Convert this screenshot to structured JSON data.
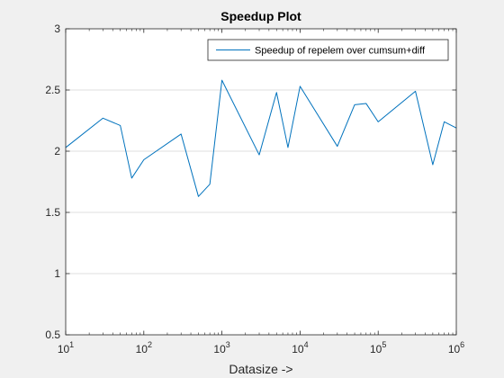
{
  "chart_data": {
    "type": "line",
    "title": "Speedup Plot",
    "xlabel": "Datasize ->",
    "ylabel": "",
    "xscale": "log",
    "xlim": [
      10,
      1000000
    ],
    "ylim": [
      0.5,
      3
    ],
    "grid": "horizontal",
    "legend_position": "top-right",
    "colors": {
      "series": "#0072bd",
      "axes": "#262626",
      "grid": "#dfdfdf",
      "background": "#ffffff"
    },
    "x_ticks": [
      {
        "base": "10",
        "exp": "1",
        "value": 10
      },
      {
        "base": "10",
        "exp": "2",
        "value": 100
      },
      {
        "base": "10",
        "exp": "3",
        "value": 1000
      },
      {
        "base": "10",
        "exp": "4",
        "value": 10000
      },
      {
        "base": "10",
        "exp": "5",
        "value": 100000
      },
      {
        "base": "10",
        "exp": "6",
        "value": 1000000
      }
    ],
    "y_ticks": [
      {
        "label": "0.5",
        "value": 0.5
      },
      {
        "label": "1",
        "value": 1
      },
      {
        "label": "1.5",
        "value": 1.5
      },
      {
        "label": "2",
        "value": 2
      },
      {
        "label": "2.5",
        "value": 2.5
      },
      {
        "label": "3",
        "value": 3
      }
    ],
    "series": [
      {
        "name": "Speedup of repelem over cumsum+diff",
        "x": [
          10,
          30,
          50,
          70,
          100,
          300,
          500,
          700,
          1000,
          3000,
          5000,
          7000,
          10000,
          30000,
          50000,
          70000,
          100000,
          300000,
          500000,
          700000,
          1000000
        ],
        "y": [
          2.03,
          2.27,
          2.21,
          1.78,
          1.93,
          2.14,
          1.63,
          1.73,
          2.58,
          1.97,
          2.48,
          2.03,
          2.53,
          2.04,
          2.38,
          2.39,
          2.24,
          2.49,
          1.89,
          2.24,
          2.19
        ]
      }
    ]
  }
}
